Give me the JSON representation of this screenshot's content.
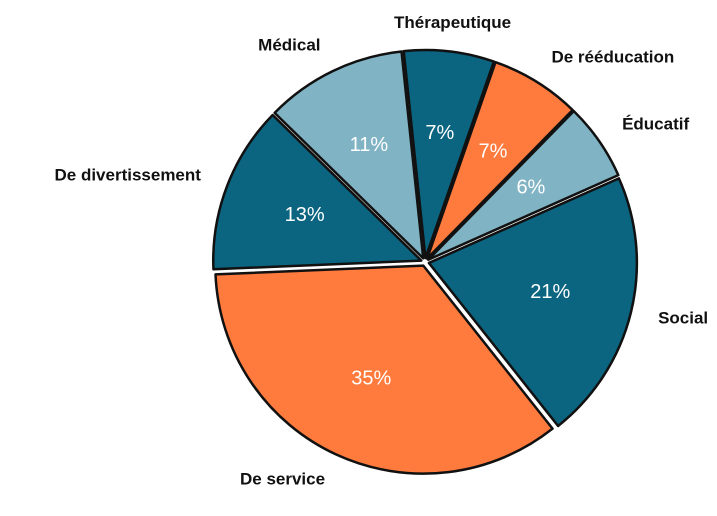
{
  "chart_data": {
    "type": "pie",
    "categories": [
      "Thérapeutique",
      "De rééducation",
      "Éducatif",
      "Social",
      "De service",
      "De divertissement",
      "Médical"
    ],
    "values": [
      7,
      7,
      6,
      21,
      35,
      13,
      11
    ],
    "value_labels": [
      "7%",
      "7%",
      "6%",
      "21%",
      "35%",
      "13%",
      "11%"
    ],
    "colors": [
      "#0b6480",
      "#ff7a3d",
      "#80b3c4",
      "#0b6480",
      "#ff7a3d",
      "#0b6480",
      "#80b3c4"
    ]
  }
}
